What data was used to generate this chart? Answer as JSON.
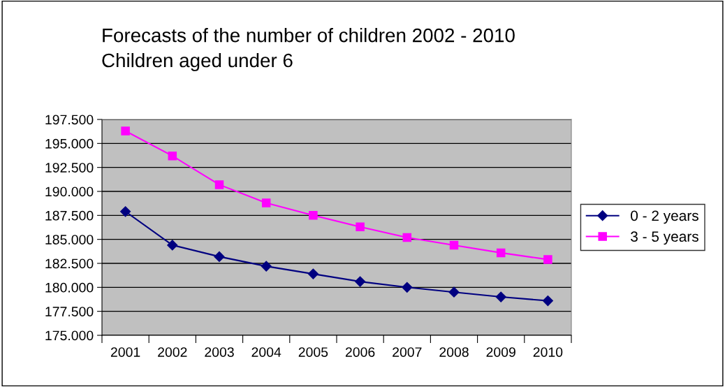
{
  "chart_data": {
    "type": "line",
    "title": "Forecasts of the number of children 2002 - 2010\nChildren aged under 6",
    "categories": [
      "2001",
      "2002",
      "2003",
      "2004",
      "2005",
      "2006",
      "2007",
      "2008",
      "2009",
      "2010"
    ],
    "series": [
      {
        "name": "0 - 2 years",
        "color": "#000080",
        "marker": "diamond",
        "values": [
          187900,
          184400,
          183200,
          182200,
          181400,
          180600,
          180000,
          179500,
          179000,
          178600
        ]
      },
      {
        "name": "3 - 5 years",
        "color": "#ff00ff",
        "marker": "square",
        "values": [
          196300,
          193700,
          190700,
          188800,
          187500,
          186300,
          185200,
          184400,
          183600,
          182900
        ]
      }
    ],
    "ylim": [
      175000,
      197500
    ],
    "yticks": [
      {
        "value": 175000,
        "label": "175.000"
      },
      {
        "value": 177500,
        "label": "177.500"
      },
      {
        "value": 180000,
        "label": "180.000"
      },
      {
        "value": 182500,
        "label": "182.500"
      },
      {
        "value": 185000,
        "label": "185.000"
      },
      {
        "value": 187500,
        "label": "187.500"
      },
      {
        "value": 190000,
        "label": "190.000"
      },
      {
        "value": 192500,
        "label": "192.500"
      },
      {
        "value": 195000,
        "label": "195.000"
      },
      {
        "value": 197500,
        "label": "197.500"
      }
    ],
    "grid": "y",
    "legend": "right",
    "line_style": "solid"
  }
}
